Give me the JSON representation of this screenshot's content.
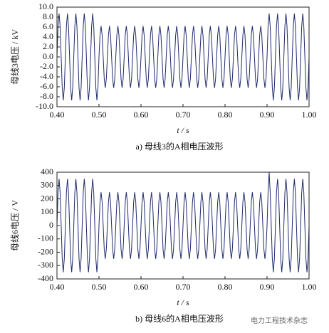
{
  "chart_data": [
    {
      "type": "line",
      "caption": "a)  母线3的A相电压波形",
      "ylabel": "母线3电压 / kV",
      "xlabel": "t / s",
      "color": "#1f2a6b",
      "xlim": [
        0.4,
        1.0
      ],
      "ylim": [
        -10,
        10
      ],
      "xticks": [
        {
          "value": 0.4,
          "label": "0.40"
        },
        {
          "value": 0.5,
          "label": "0.50"
        },
        {
          "value": 0.6,
          "label": "0.60"
        },
        {
          "value": 0.7,
          "label": "0.70"
        },
        {
          "value": 0.8,
          "label": "0.80"
        },
        {
          "value": 0.9,
          "label": "0.90"
        },
        {
          "value": 1.0,
          "label": "1.00"
        }
      ],
      "yticks": [
        {
          "value": 10,
          "label": "10.0"
        },
        {
          "value": 8,
          "label": "8.0"
        },
        {
          "value": 6,
          "label": "6.0"
        },
        {
          "value": 4,
          "label": "4.0"
        },
        {
          "value": 2,
          "label": "2.0"
        },
        {
          "value": 0,
          "label": "0.0"
        },
        {
          "value": -2,
          "label": "-2.0"
        },
        {
          "value": -4,
          "label": "-4.0"
        },
        {
          "value": -6,
          "label": "-6.0"
        },
        {
          "value": -8,
          "label": "-8.0"
        },
        {
          "value": -10,
          "label": "-10.0"
        }
      ],
      "x": [
        0.4,
        0.4025,
        0.405,
        0.4075,
        0.41,
        0.4125,
        0.415,
        0.4175,
        0.42,
        0.4225,
        0.425,
        0.4275,
        0.43,
        0.4325,
        0.435,
        0.4375,
        0.44,
        0.4425,
        0.445,
        0.4475,
        0.45,
        0.4525,
        0.455,
        0.4575,
        0.46,
        0.4625,
        0.465,
        0.4675,
        0.47,
        0.4725,
        0.475,
        0.4775,
        0.48,
        0.4825,
        0.485,
        0.4875,
        0.49,
        0.4925,
        0.495,
        0.4975,
        0.5,
        0.5025,
        0.505,
        0.5075,
        0.51,
        0.5125,
        0.515,
        0.5175,
        0.52,
        0.5225,
        0.525,
        0.5275,
        0.53,
        0.5325,
        0.535,
        0.5375,
        0.54,
        0.5425,
        0.545,
        0.5475,
        0.55,
        0.5525,
        0.555,
        0.5575,
        0.56,
        0.5625,
        0.565,
        0.5675,
        0.57,
        0.5725,
        0.575,
        0.5775,
        0.58,
        0.5825,
        0.585,
        0.5875,
        0.59,
        0.5925,
        0.595,
        0.5975,
        0.6,
        0.6025,
        0.605,
        0.6075,
        0.61,
        0.6125,
        0.615,
        0.6175,
        0.62,
        0.6225,
        0.625,
        0.6275,
        0.63,
        0.6325,
        0.635,
        0.6375,
        0.64,
        0.6425,
        0.645,
        0.6475,
        0.65,
        0.6525,
        0.655,
        0.6575,
        0.66,
        0.6625,
        0.665,
        0.6675,
        0.67,
        0.6725,
        0.675,
        0.6775,
        0.68,
        0.6825,
        0.685,
        0.6875,
        0.69,
        0.6925,
        0.695,
        0.6975,
        0.7,
        0.7025,
        0.705,
        0.7075,
        0.71,
        0.7125,
        0.715,
        0.7175,
        0.72,
        0.7225,
        0.725,
        0.7275,
        0.73,
        0.7325,
        0.735,
        0.7375,
        0.74,
        0.7425,
        0.745,
        0.7475,
        0.75,
        0.7525,
        0.755,
        0.7575,
        0.76,
        0.7625,
        0.765,
        0.7675,
        0.77,
        0.7725,
        0.775,
        0.7775,
        0.78,
        0.7825,
        0.785,
        0.7875,
        0.79,
        0.7925,
        0.795,
        0.7975,
        0.8,
        0.8025,
        0.805,
        0.8075,
        0.81,
        0.8125,
        0.815,
        0.8175,
        0.82,
        0.8225,
        0.825,
        0.8275,
        0.83,
        0.8325,
        0.835,
        0.8375,
        0.84,
        0.8425,
        0.845,
        0.8475,
        0.85,
        0.8525,
        0.855,
        0.8575,
        0.86,
        0.8625,
        0.865,
        0.8675,
        0.87,
        0.8725,
        0.875,
        0.8775,
        0.88,
        0.8825,
        0.885,
        0.8875,
        0.89,
        0.8925,
        0.895,
        0.8975,
        0.9,
        0.9025,
        0.905,
        0.9075,
        0.91,
        0.9125,
        0.915,
        0.9175,
        0.92,
        0.9225,
        0.925,
        0.9275,
        0.93,
        0.9325,
        0.935,
        0.9375,
        0.94,
        0.9425,
        0.945,
        0.9475,
        0.95,
        0.9525,
        0.955,
        0.9575,
        0.96,
        0.9625,
        0.965,
        0.9675,
        0.97,
        0.9725,
        0.975,
        0.9775,
        0.98,
        0.9825,
        0.985,
        0.9875,
        0.99,
        0.9925,
        0.995,
        0.9975,
        1.0
      ],
      "values": [
        0,
        6.15,
        8.7,
        6.15,
        0,
        -6.15,
        -8.7,
        -6.15,
        0,
        6.15,
        8.7,
        6.15,
        0,
        -6.15,
        -8.7,
        -6.15,
        0,
        6.15,
        8.7,
        6.15,
        0,
        -6.15,
        -8.7,
        -6.15,
        0,
        6.15,
        8.7,
        6.15,
        0,
        -6.15,
        -8.7,
        -6.15,
        0,
        6.15,
        8.7,
        6.15,
        0,
        -6.15,
        -8.7,
        -6.15,
        0,
        4.38,
        6.2,
        4.38,
        0,
        -4.38,
        -6.2,
        -4.38,
        0,
        4.38,
        6.2,
        4.38,
        0,
        -4.38,
        -6.2,
        -4.38,
        0,
        4.38,
        6.2,
        4.38,
        0,
        -4.38,
        -6.2,
        -4.38,
        0,
        4.38,
        6.2,
        4.38,
        0,
        -4.38,
        -6.2,
        -4.38,
        0,
        4.38,
        6.2,
        4.38,
        0,
        -4.38,
        -6.2,
        -4.38,
        0,
        4.38,
        6.2,
        4.38,
        0,
        -4.38,
        -6.2,
        -4.38,
        0,
        4.38,
        6.2,
        4.38,
        0,
        -4.38,
        -6.2,
        -4.38,
        0,
        4.38,
        6.2,
        4.38,
        0,
        -4.38,
        -6.2,
        -4.38,
        0,
        4.38,
        6.2,
        4.38,
        0,
        -4.38,
        -6.2,
        -4.38,
        0,
        4.38,
        6.2,
        4.38,
        0,
        -4.38,
        -6.2,
        -4.38,
        0,
        4.38,
        6.2,
        4.38,
        0,
        -4.38,
        -6.2,
        -4.38,
        0,
        4.38,
        6.2,
        4.38,
        0,
        -4.38,
        -6.2,
        -4.38,
        0,
        4.38,
        6.2,
        4.38,
        0,
        -4.38,
        -6.2,
        -4.38,
        0,
        4.38,
        6.2,
        4.38,
        0,
        -4.38,
        -6.2,
        -4.38,
        0,
        4.38,
        6.2,
        4.38,
        0,
        -4.38,
        -6.2,
        -4.38,
        0,
        4.38,
        6.2,
        4.38,
        0,
        -4.38,
        -6.2,
        -4.38,
        0,
        4.38,
        6.2,
        4.38,
        0,
        -4.38,
        -6.2,
        -4.38,
        0,
        4.38,
        6.2,
        4.38,
        0,
        -4.38,
        -6.2,
        -4.38,
        0,
        4.38,
        6.2,
        4.38,
        0,
        -4.38,
        -6.2,
        -4.38,
        0,
        4.38,
        6.2,
        4.38,
        0,
        -4.38,
        -6.2,
        -4.38,
        0,
        6.15,
        8.7,
        6.15,
        0,
        -6.15,
        -8.7,
        -6.15,
        0,
        6.15,
        8.7,
        6.15,
        0,
        -6.15,
        -8.7,
        -6.15,
        0,
        6.15,
        8.7,
        6.15,
        0,
        -6.15,
        -8.7,
        -6.15,
        0,
        6.15,
        8.7,
        6.15,
        0,
        -6.15,
        -8.7,
        -6.15,
        0,
        6.15,
        8.7,
        6.15,
        0,
        -6.15,
        -8.7,
        -6.15,
        0
      ]
    },
    {
      "type": "line",
      "caption": "b)  母线6的A相电压波形",
      "ylabel": "母线6电压 / V",
      "xlabel": "t / s",
      "color": "#1f2a6b",
      "xlim": [
        0.4,
        1.0
      ],
      "ylim": [
        -400,
        400
      ],
      "xticks": [
        {
          "value": 0.4,
          "label": "0.40"
        },
        {
          "value": 0.5,
          "label": "0.50"
        },
        {
          "value": 0.6,
          "label": "0.60"
        },
        {
          "value": 0.7,
          "label": "0.70"
        },
        {
          "value": 0.8,
          "label": "0.80"
        },
        {
          "value": 0.9,
          "label": "0.90"
        },
        {
          "value": 1.0,
          "label": "1.00"
        }
      ],
      "yticks": [
        400,
        300,
        200,
        100,
        0,
        -100,
        -200,
        -300,
        -400
      ],
      "x": [
        0.4,
        0.4025,
        0.405,
        0.4075,
        0.41,
        0.4125,
        0.415,
        0.4175,
        0.42,
        0.4225,
        0.425,
        0.4275,
        0.43,
        0.4325,
        0.435,
        0.4375,
        0.44,
        0.4425,
        0.445,
        0.4475,
        0.45,
        0.4525,
        0.455,
        0.4575,
        0.46,
        0.4625,
        0.465,
        0.4675,
        0.47,
        0.4725,
        0.475,
        0.4775,
        0.48,
        0.4825,
        0.485,
        0.4875,
        0.49,
        0.4925,
        0.495,
        0.4975,
        0.5,
        0.5025,
        0.505,
        0.5075,
        0.51,
        0.5125,
        0.515,
        0.5175,
        0.52,
        0.5225,
        0.525,
        0.5275,
        0.53,
        0.5325,
        0.535,
        0.5375,
        0.54,
        0.5425,
        0.545,
        0.5475,
        0.55,
        0.5525,
        0.555,
        0.5575,
        0.56,
        0.5625,
        0.565,
        0.5675,
        0.57,
        0.5725,
        0.575,
        0.5775,
        0.58,
        0.5825,
        0.585,
        0.5875,
        0.59,
        0.5925,
        0.595,
        0.5975,
        0.6,
        0.6025,
        0.605,
        0.6075,
        0.61,
        0.6125,
        0.615,
        0.6175,
        0.62,
        0.6225,
        0.625,
        0.6275,
        0.63,
        0.6325,
        0.635,
        0.6375,
        0.64,
        0.6425,
        0.645,
        0.6475,
        0.65,
        0.6525,
        0.655,
        0.6575,
        0.66,
        0.6625,
        0.665,
        0.6675,
        0.67,
        0.6725,
        0.675,
        0.6775,
        0.68,
        0.6825,
        0.685,
        0.6875,
        0.69,
        0.6925,
        0.695,
        0.6975,
        0.7,
        0.7025,
        0.705,
        0.7075,
        0.71,
        0.7125,
        0.715,
        0.7175,
        0.72,
        0.7225,
        0.725,
        0.7275,
        0.73,
        0.7325,
        0.735,
        0.7375,
        0.74,
        0.7425,
        0.745,
        0.7475,
        0.75,
        0.7525,
        0.755,
        0.7575,
        0.76,
        0.7625,
        0.765,
        0.7675,
        0.77,
        0.7725,
        0.775,
        0.7775,
        0.78,
        0.7825,
        0.785,
        0.7875,
        0.79,
        0.7925,
        0.795,
        0.7975,
        0.8,
        0.8025,
        0.805,
        0.8075,
        0.81,
        0.8125,
        0.815,
        0.8175,
        0.82,
        0.8225,
        0.825,
        0.8275,
        0.83,
        0.8325,
        0.835,
        0.8375,
        0.84,
        0.8425,
        0.845,
        0.8475,
        0.85,
        0.8525,
        0.855,
        0.8575,
        0.86,
        0.8625,
        0.865,
        0.8675,
        0.87,
        0.8725,
        0.875,
        0.8775,
        0.88,
        0.8825,
        0.885,
        0.8875,
        0.89,
        0.8925,
        0.895,
        0.8975,
        0.9,
        0.9025,
        0.905,
        0.9075,
        0.91,
        0.9125,
        0.915,
        0.9175,
        0.92,
        0.9225,
        0.925,
        0.9275,
        0.93,
        0.9325,
        0.935,
        0.9375,
        0.94,
        0.9425,
        0.945,
        0.9475,
        0.95,
        0.9525,
        0.955,
        0.9575,
        0.96,
        0.9625,
        0.965,
        0.9675,
        0.97,
        0.9725,
        0.975,
        0.9775,
        0.98,
        0.9825,
        0.985,
        0.9875,
        0.99,
        0.9925,
        0.995,
        0.9975,
        1.0
      ],
      "values": [
        0,
        247.5,
        350,
        247.5,
        0,
        -247.5,
        -350,
        -247.5,
        0,
        247.5,
        350,
        247.5,
        0,
        -247.5,
        -350,
        -247.5,
        0,
        247.5,
        350,
        247.5,
        0,
        -247.5,
        -350,
        -247.5,
        0,
        247.5,
        350,
        247.5,
        0,
        -247.5,
        -350,
        -247.5,
        0,
        247.5,
        350,
        247.5,
        0,
        -247.5,
        -350,
        -247.5,
        0,
        176.8,
        250,
        176.8,
        0,
        -176.8,
        -250,
        -176.8,
        0,
        176.8,
        250,
        176.8,
        0,
        -176.8,
        -250,
        -176.8,
        0,
        176.8,
        250,
        176.8,
        0,
        -176.8,
        -250,
        -176.8,
        0,
        176.8,
        250,
        176.8,
        0,
        -176.8,
        -250,
        -176.8,
        0,
        176.8,
        250,
        176.8,
        0,
        -176.8,
        -250,
        -176.8,
        0,
        176.8,
        250,
        176.8,
        0,
        -176.8,
        -250,
        -176.8,
        0,
        176.8,
        250,
        176.8,
        0,
        -176.8,
        -250,
        -176.8,
        0,
        176.8,
        250,
        176.8,
        0,
        -176.8,
        -250,
        -176.8,
        0,
        176.8,
        250,
        176.8,
        0,
        -176.8,
        -250,
        -176.8,
        0,
        176.8,
        250,
        176.8,
        0,
        -176.8,
        -250,
        -176.8,
        0,
        176.8,
        250,
        176.8,
        0,
        -176.8,
        -250,
        -176.8,
        0,
        176.8,
        250,
        176.8,
        0,
        -176.8,
        -250,
        -176.8,
        0,
        176.8,
        250,
        176.8,
        0,
        -176.8,
        -250,
        -176.8,
        0,
        176.8,
        250,
        176.8,
        0,
        -176.8,
        -250,
        -176.8,
        0,
        176.8,
        250,
        176.8,
        0,
        -176.8,
        -250,
        -176.8,
        0,
        176.8,
        250,
        176.8,
        0,
        -176.8,
        -250,
        -176.8,
        0,
        176.8,
        250,
        176.8,
        0,
        -176.8,
        -250,
        -176.8,
        0,
        176.8,
        250,
        176.8,
        0,
        -176.8,
        -250,
        -176.8,
        0,
        176.8,
        250,
        176.8,
        0,
        -176.8,
        -250,
        -176.8,
        0,
        176.8,
        250,
        176.8,
        0,
        -176.8,
        -250,
        -176.8,
        0,
        247.5,
        400,
        247.5,
        0,
        -247.5,
        -350,
        -247.5,
        0,
        247.5,
        350,
        247.5,
        0,
        -247.5,
        -350,
        -247.5,
        0,
        247.5,
        350,
        247.5,
        0,
        -247.5,
        -350,
        -247.5,
        0,
        247.5,
        350,
        247.5,
        0,
        -247.5,
        -350,
        -247.5,
        0,
        247.5,
        350,
        247.5,
        0,
        -247.5,
        -350,
        -247.5,
        0
      ]
    }
  ],
  "watermark": "电力工程技术杂志"
}
